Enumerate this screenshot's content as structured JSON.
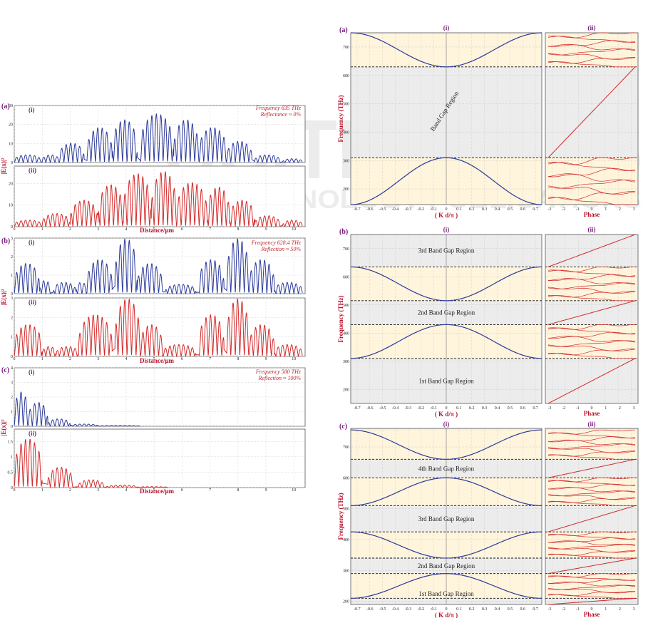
{
  "watermark": {
    "big": "SCITEPRESS",
    "small": "SCIENCE AND TECHNOLOGY PUBLICATIONS"
  },
  "colors": {
    "blue": "#2b3a9b",
    "red": "#d42a2a",
    "panel_label": "#7a1a7a",
    "axis_label": "#b5122c",
    "band_bg": "#fff4dc",
    "gap_bg": "#ececec"
  },
  "chart_data": [
    {
      "type": "line",
      "panel": "(a)",
      "figure": "left",
      "ylabel": "|E(x)|²",
      "xlabel": "Distance/μm",
      "xticks": [
        0,
        1,
        2,
        3,
        4,
        5,
        6,
        7,
        8,
        9,
        10
      ],
      "xlim": [
        0,
        10.4
      ],
      "note": [
        "Frequency 635 THz",
        "Reflectance ≈ 0%"
      ],
      "series": [
        {
          "name": "(i)",
          "color": "blue",
          "yticks": [
            0,
            10,
            20,
            30
          ],
          "ylim": [
            0,
            30
          ],
          "segments": [
            [
              0,
              0.95,
              4
            ],
            [
              1.0,
              1.6,
              4
            ],
            [
              1.6,
              2.5,
              10
            ],
            [
              2.6,
              3.5,
              18
            ],
            [
              3.5,
              4.4,
              22
            ],
            [
              4.5,
              5.7,
              25
            ],
            [
              5.7,
              6.6,
              22
            ],
            [
              6.6,
              7.6,
              18
            ],
            [
              7.6,
              8.5,
              11
            ],
            [
              8.6,
              9.5,
              4
            ],
            [
              9.6,
              10.3,
              2
            ]
          ]
        },
        {
          "name": "(ii)",
          "color": "red",
          "yticks": [
            0,
            10,
            20
          ],
          "ylim": [
            0,
            28
          ],
          "segments": [
            [
              0,
              1.0,
              3
            ],
            [
              1.0,
              2.0,
              6
            ],
            [
              2.0,
              3.0,
              12
            ],
            [
              3.0,
              3.9,
              19
            ],
            [
              3.9,
              4.9,
              24
            ],
            [
              4.9,
              5.8,
              25
            ],
            [
              5.8,
              6.9,
              20
            ],
            [
              6.9,
              7.7,
              18
            ],
            [
              7.7,
              8.6,
              12
            ],
            [
              8.6,
              9.5,
              5
            ],
            [
              9.6,
              10.3,
              3
            ]
          ]
        }
      ]
    },
    {
      "type": "line",
      "panel": "(b)",
      "figure": "left",
      "ylabel": "|E(x)|²",
      "xlabel": "Distance/μm",
      "xticks": [
        0,
        1,
        2,
        3,
        4,
        5,
        6,
        7,
        8,
        9,
        10
      ],
      "xlim": [
        0,
        10.4
      ],
      "note": [
        "Frequency 628.4 THz",
        "Reflection ≈ 50%"
      ],
      "series": [
        {
          "name": "(i)",
          "color": "blue",
          "yticks": [
            0,
            1,
            2,
            3
          ],
          "ylim": [
            0,
            3
          ],
          "segments": [
            [
              0,
              0.9,
              1.6
            ],
            [
              0.9,
              1.3,
              0.7
            ],
            [
              1.4,
              2.2,
              0.6
            ],
            [
              2.2,
              2.6,
              0.6
            ],
            [
              2.6,
              3.5,
              1.8
            ],
            [
              3.6,
              4.4,
              2.9
            ],
            [
              4.4,
              5.3,
              1.6
            ],
            [
              5.4,
              6.5,
              0.5
            ],
            [
              6.6,
              7.5,
              1.8
            ],
            [
              7.6,
              8.4,
              2.9
            ],
            [
              8.4,
              9.3,
              1.8
            ],
            [
              9.3,
              10.3,
              0.6
            ]
          ]
        },
        {
          "name": "(ii)",
          "color": "red",
          "yticks": [
            0,
            1,
            2,
            3
          ],
          "ylim": [
            0,
            3
          ],
          "segments": [
            [
              0,
              1.0,
              1.6
            ],
            [
              1.0,
              1.5,
              0.5
            ],
            [
              1.5,
              2.3,
              0.5
            ],
            [
              2.3,
              3.5,
              2.1
            ],
            [
              3.6,
              4.5,
              2.9
            ],
            [
              4.5,
              5.3,
              1.6
            ],
            [
              5.3,
              6.5,
              0.6
            ],
            [
              6.6,
              7.5,
              2.1
            ],
            [
              7.6,
              8.4,
              2.9
            ],
            [
              8.4,
              9.3,
              1.6
            ],
            [
              9.3,
              10.3,
              0.6
            ]
          ]
        }
      ]
    },
    {
      "type": "line",
      "panel": "(c)",
      "figure": "left",
      "ylabel": "|E(x)|²",
      "xlabel": "Distance/μm",
      "xticks": [
        0,
        1,
        2,
        3,
        4,
        5,
        6,
        7,
        8,
        9,
        10
      ],
      "xlim": [
        0,
        10.4
      ],
      "note": [
        "Frequency 580 THz",
        "Reflection ≈ 100%"
      ],
      "series": [
        {
          "name": "(i)",
          "color": "blue",
          "yticks": [
            0,
            1,
            2,
            3,
            4
          ],
          "ylim": [
            0,
            4
          ],
          "segments": [
            [
              0,
              0.5,
              2.3
            ],
            [
              0.5,
              1.2,
              1.6
            ],
            [
              1.2,
              2.0,
              0.5
            ],
            [
              2.0,
              3.0,
              0.15
            ],
            [
              3.0,
              4.5,
              0.05
            ]
          ]
        },
        {
          "name": "(ii)",
          "color": "red",
          "yticks": [
            0,
            0.5,
            1,
            1.5
          ],
          "ylim": [
            0,
            1.9
          ],
          "segments": [
            [
              0,
              1.0,
              1.55
            ],
            [
              1.2,
              2.1,
              0.65
            ],
            [
              2.3,
              3.2,
              0.25
            ],
            [
              3.3,
              4.4,
              0.08
            ],
            [
              4.4,
              5.5,
              0.03
            ]
          ]
        }
      ]
    },
    {
      "type": "line",
      "panel": "(a)",
      "figure": "right",
      "ylabel": "Frequency (THz)",
      "xlabel": "( K d/π )",
      "phase_label": "Phase",
      "sub_labels": [
        "(i)",
        "(ii)"
      ],
      "xticks": [
        "-0.7",
        "-0.6",
        "-0.5",
        "-0.4",
        "-0.3",
        "-0.2",
        "-0.1",
        "0",
        "0.1",
        "0.2",
        "0.3",
        "0.4",
        "0.5",
        "0.6",
        "0.7"
      ],
      "phase_ticks": [
        "-3",
        "-2",
        "-1",
        "0",
        "1",
        "2",
        "3"
      ],
      "yticks": [
        200,
        300,
        400,
        500,
        600,
        700
      ],
      "ylim": [
        145,
        750
      ],
      "bands": [
        [
          145,
          310
        ],
        [
          630,
          750
        ]
      ],
      "gaps": [
        {
          "range": [
            310,
            630
          ],
          "label": "Band Gap Region",
          "rotated": true
        }
      ]
    },
    {
      "type": "line",
      "panel": "(b)",
      "figure": "right",
      "ylabel": "Frequency (THz)",
      "xlabel": "( K d/π )",
      "phase_label": "Phase",
      "sub_labels": [
        "(i)",
        "(ii)"
      ],
      "xticks": [
        "-0.7",
        "-0.6",
        "-0.5",
        "-0.4",
        "-0.3",
        "-0.2",
        "-0.1",
        "0",
        "0.1",
        "0.2",
        "0.3",
        "0.4",
        "0.5",
        "0.6",
        "0.7"
      ],
      "phase_ticks": [
        "-3",
        "-2",
        "-1",
        "0",
        "1",
        "2",
        "3"
      ],
      "yticks": [
        200,
        300,
        400,
        500,
        600,
        700
      ],
      "ylim": [
        150,
        750
      ],
      "bands": [
        [
          310,
          430
        ],
        [
          515,
          635
        ]
      ],
      "gaps": [
        {
          "range": [
            150,
            310
          ],
          "label": "1st Band Gap Region"
        },
        {
          "range": [
            430,
            515
          ],
          "label": "2nd Band Gap Region"
        },
        {
          "range": [
            635,
            750
          ],
          "label": "3rd Band Gap Region"
        }
      ]
    },
    {
      "type": "line",
      "panel": "(c)",
      "figure": "right",
      "ylabel": "Frequency (THz)",
      "xlabel": "( K d/π )",
      "phase_label": "Phase",
      "sub_labels": [
        "(i)",
        "(ii)"
      ],
      "xticks": [
        "-0.7",
        "-0.6",
        "-0.5",
        "-0.4",
        "-0.3",
        "-0.2",
        "-0.1",
        "0",
        "0.1",
        "0.2",
        "0.3",
        "0.4",
        "0.5",
        "0.6",
        "0.7"
      ],
      "phase_ticks": [
        "-3",
        "-2",
        "-1",
        "0",
        "1",
        "2",
        "3"
      ],
      "yticks": [
        200,
        300,
        400,
        500,
        600,
        700
      ],
      "ylim": [
        190,
        760
      ],
      "bands": [
        [
          210,
          290
        ],
        [
          340,
          425
        ],
        [
          510,
          600
        ],
        [
          660,
          755
        ]
      ],
      "gaps": [
        {
          "range": [
            190,
            210
          ],
          "label": ""
        },
        {
          "range": [
            290,
            340
          ],
          "label": "2nd Band Gap Region"
        },
        {
          "range": [
            425,
            510
          ],
          "label": "3rd Band Gap Region"
        },
        {
          "range": [
            600,
            660
          ],
          "label": "4th Band Gap Region"
        }
      ],
      "extra_labels": [
        {
          "label": "1st Band Gap Region",
          "at": 225
        }
      ]
    }
  ]
}
